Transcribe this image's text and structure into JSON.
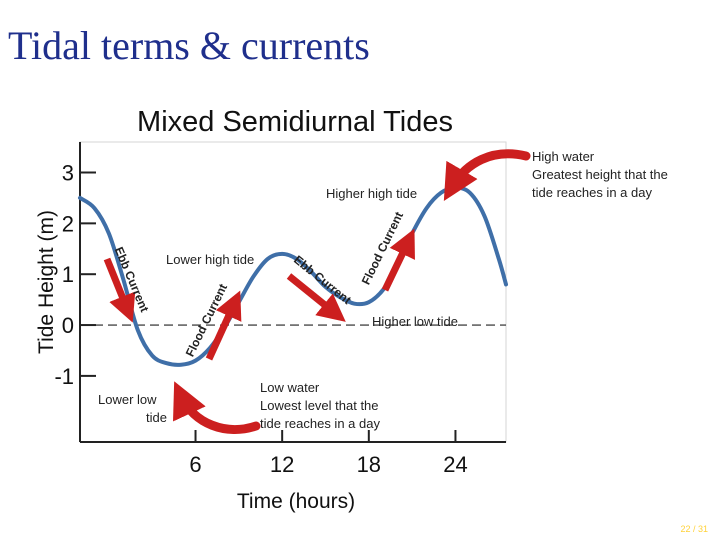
{
  "slide": {
    "title": "Tidal terms & currents",
    "page_number": "22 / 31"
  },
  "colors": {
    "curve": "#3f6fa8",
    "arrow": "#cc1f1f",
    "title": "#1f2f8c",
    "page_number": "#ffd23a"
  },
  "chart_data": {
    "type": "line",
    "title": "Mixed Semidiurnal Tides",
    "xlabel": "Time (hours)",
    "ylabel": "Tide Height (m)",
    "xlim": [
      -2,
      27.5
    ],
    "ylim": [
      -2.3,
      3.6
    ],
    "xticks": [
      6,
      12,
      18,
      24
    ],
    "yticks": [
      -1,
      0,
      1,
      2,
      3
    ],
    "zero_line": "dashed",
    "grid": false,
    "series": [
      {
        "x": [
          -2,
          -1,
          0,
          1,
          2,
          3,
          4,
          5,
          6,
          7,
          8,
          9,
          10,
          11,
          12,
          13,
          14,
          15,
          16,
          17,
          18,
          19,
          20,
          21,
          22,
          23,
          24,
          25,
          26,
          27,
          27.5
        ],
        "y": [
          2.5,
          2.3,
          1.8,
          0.9,
          -0.1,
          -0.6,
          -0.75,
          -0.78,
          -0.7,
          -0.45,
          -0.05,
          0.45,
          0.95,
          1.3,
          1.4,
          1.3,
          1.05,
          0.75,
          0.55,
          0.42,
          0.45,
          0.7,
          1.2,
          1.8,
          2.3,
          2.6,
          2.7,
          2.6,
          2.15,
          1.3,
          0.8
        ]
      }
    ],
    "annotations": {
      "higher_high_tide": "Higher high tide",
      "lower_high_tide": "Lower high tide",
      "higher_low_tide": "Higher low tide",
      "lower_low_tide_line1": "Lower low",
      "lower_low_tide_line2": "tide",
      "high_water_title": "High water",
      "high_water_desc_line1": "Greatest height that the",
      "high_water_desc_line2": "tide reaches in a day",
      "low_water_title": "Low water",
      "low_water_desc_line1": "Lowest level that the",
      "low_water_desc_line2": "tide reaches in a day",
      "ebb_current": "Ebb Current",
      "flood_current": "Flood Current"
    }
  }
}
